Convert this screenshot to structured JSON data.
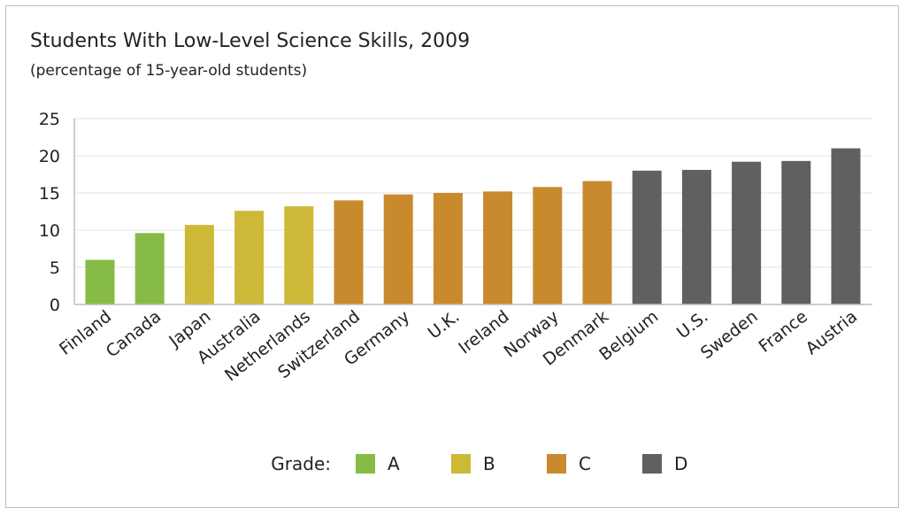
{
  "chart_data": {
    "type": "bar",
    "title": "Students With Low-Level Science Skills, 2009",
    "subtitle": "(percentage of 15-year-old students)",
    "xlabel": "",
    "ylabel": "",
    "ylim": [
      0,
      25
    ],
    "yticks": [
      0,
      5,
      10,
      15,
      20,
      25
    ],
    "grid": true,
    "categories": [
      "Finland",
      "Canada",
      "Japan",
      "Australia",
      "Netherlands",
      "Switzerland",
      "Germany",
      "U.K.",
      "Ireland",
      "Norway",
      "Denmark",
      "Belgium",
      "U.S.",
      "Sweden",
      "France",
      "Austria"
    ],
    "values": [
      6.0,
      9.6,
      10.7,
      12.6,
      13.2,
      14.0,
      14.8,
      15.0,
      15.2,
      15.8,
      16.6,
      18.0,
      18.1,
      19.2,
      19.3,
      21.0
    ],
    "grades": [
      "A",
      "A",
      "B",
      "B",
      "B",
      "C",
      "C",
      "C",
      "C",
      "C",
      "C",
      "D",
      "D",
      "D",
      "D",
      "D"
    ],
    "legend": {
      "title": "Grade:",
      "placement": "bottom",
      "items": [
        {
          "label": "A",
          "color": "#86bc45"
        },
        {
          "label": "B",
          "color": "#cdb937"
        },
        {
          "label": "C",
          "color": "#c88a2c"
        },
        {
          "label": "D",
          "color": "#5f6062"
        }
      ]
    }
  }
}
